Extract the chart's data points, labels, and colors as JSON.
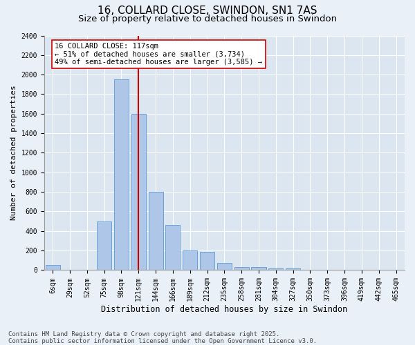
{
  "title1": "16, COLLARD CLOSE, SWINDON, SN1 7AS",
  "title2": "Size of property relative to detached houses in Swindon",
  "xlabel": "Distribution of detached houses by size in Swindon",
  "ylabel": "Number of detached properties",
  "categories": [
    "6sqm",
    "29sqm",
    "52sqm",
    "75sqm",
    "98sqm",
    "121sqm",
    "144sqm",
    "166sqm",
    "189sqm",
    "212sqm",
    "235sqm",
    "258sqm",
    "281sqm",
    "304sqm",
    "327sqm",
    "350sqm",
    "373sqm",
    "396sqm",
    "419sqm",
    "442sqm",
    "465sqm"
  ],
  "values": [
    50,
    0,
    0,
    500,
    1950,
    1600,
    800,
    460,
    200,
    190,
    75,
    30,
    30,
    20,
    15,
    5,
    3,
    2,
    1,
    1,
    0
  ],
  "bar_color": "#aec6e8",
  "bar_edge_color": "#5b9bd5",
  "axes_bg_color": "#dce6f1",
  "fig_bg_color": "#eaf0f8",
  "grid_color": "#ffffff",
  "vline_color": "#cc0000",
  "annotation_text": "16 COLLARD CLOSE: 117sqm\n← 51% of detached houses are smaller (3,734)\n49% of semi-detached houses are larger (3,585) →",
  "annotation_box_color": "#ffffff",
  "annotation_box_edge": "#cc0000",
  "ylim": [
    0,
    2400
  ],
  "yticks": [
    0,
    200,
    400,
    600,
    800,
    1000,
    1200,
    1400,
    1600,
    1800,
    2000,
    2200,
    2400
  ],
  "footnote": "Contains HM Land Registry data © Crown copyright and database right 2025.\nContains public sector information licensed under the Open Government Licence v3.0.",
  "title_fontsize": 11,
  "subtitle_fontsize": 9.5,
  "axis_label_fontsize": 8,
  "tick_fontsize": 7,
  "annotation_fontsize": 7.5,
  "footnote_fontsize": 6.5
}
